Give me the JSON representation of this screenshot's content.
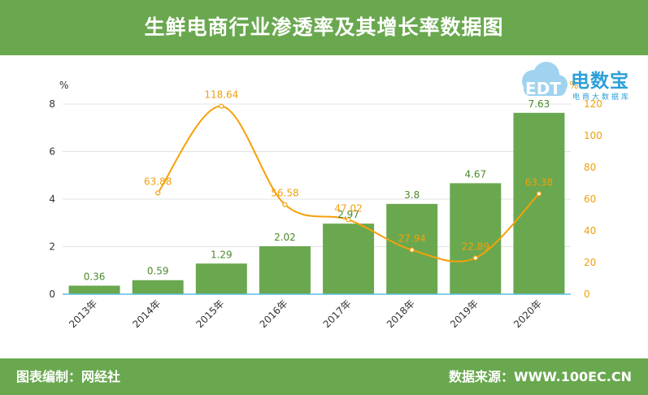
{
  "header": {
    "title": "生鲜电商行业渗透率及其增长率数据图"
  },
  "footer": {
    "left": "图表编制：网经社",
    "right": "数据来源：WWW.100EC.CN"
  },
  "logo": {
    "brand": "电数宝",
    "sub": "电商大数据库",
    "cloud_text": "EDT"
  },
  "colors": {
    "header_bg": "#6aa84f",
    "bar": "#6aa84f",
    "line": "#f5a00a",
    "axis_right": "#f0a00c"
  },
  "chart_data": {
    "type": "bar+line",
    "categories": [
      "2013年",
      "2014年",
      "2015年",
      "2016年",
      "2017年",
      "2018年",
      "2019年",
      "2020年"
    ],
    "series": [
      {
        "type": "bar",
        "axis": "left",
        "values": [
          0.36,
          0.59,
          1.29,
          2.02,
          2.97,
          3.8,
          4.67,
          7.63
        ]
      },
      {
        "type": "line",
        "axis": "right",
        "values": [
          null,
          63.88,
          118.64,
          56.58,
          47.02,
          27.94,
          22.89,
          63.38
        ]
      }
    ],
    "y_left": {
      "unit": "%",
      "range": [
        0,
        8
      ],
      "ticks": [
        0,
        2,
        4,
        6,
        8
      ]
    },
    "y_right": {
      "unit": "%",
      "range": [
        0,
        120
      ],
      "ticks": [
        0,
        20,
        40,
        60,
        80,
        100,
        120
      ]
    },
    "grid": true,
    "legend": "none"
  }
}
